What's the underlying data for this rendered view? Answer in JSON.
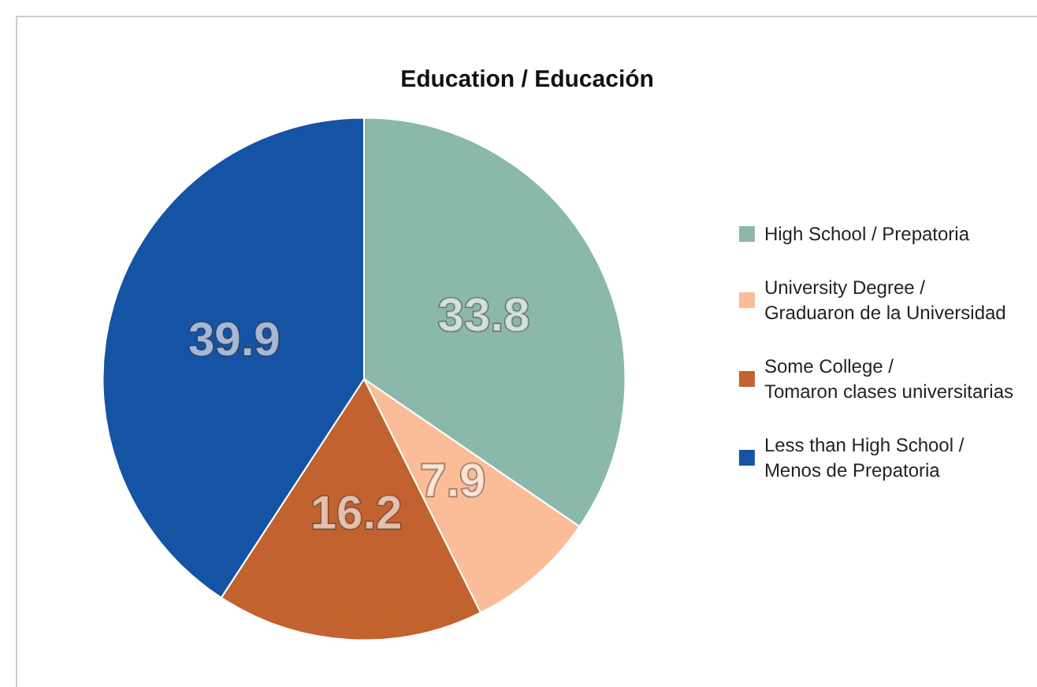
{
  "chart_data": {
    "type": "pie",
    "title": "Education / Educación",
    "categories": [
      "High School / Prepatoria",
      "University Degree / Graduaron de la Universidad",
      "Some College / Tomaron clases universitarias",
      "Less than High School / Menos de Prepatoria"
    ],
    "values": [
      33.8,
      7.9,
      16.2,
      39.9
    ],
    "colors": [
      "#8ab9ab",
      "#fbbd98",
      "#c2622f",
      "#1553a5"
    ],
    "data_labels": true,
    "legend": "right"
  }
}
